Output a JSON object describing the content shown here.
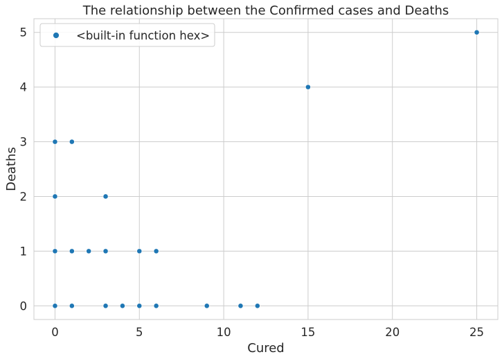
{
  "chart_data": {
    "type": "scatter",
    "title": "The relationship between the Confirmed cases and Deaths",
    "xlabel": "Cured",
    "ylabel": "Deaths",
    "xlim": [
      -1.25,
      26.25
    ],
    "ylim": [
      -0.25,
      5.25
    ],
    "xticks": [
      0,
      5,
      10,
      15,
      20,
      25
    ],
    "yticks": [
      0,
      1,
      2,
      3,
      4,
      5
    ],
    "grid": true,
    "legend_position": "top-left",
    "series": [
      {
        "name": "<built-in function hex>",
        "color": "#1f77b4",
        "points": [
          {
            "x": 0,
            "y": 0
          },
          {
            "x": 1,
            "y": 0
          },
          {
            "x": 3,
            "y": 0
          },
          {
            "x": 4,
            "y": 0
          },
          {
            "x": 5,
            "y": 0
          },
          {
            "x": 6,
            "y": 0
          },
          {
            "x": 9,
            "y": 0
          },
          {
            "x": 11,
            "y": 0
          },
          {
            "x": 12,
            "y": 0
          },
          {
            "x": 0,
            "y": 1
          },
          {
            "x": 1,
            "y": 1
          },
          {
            "x": 2,
            "y": 1
          },
          {
            "x": 3,
            "y": 1
          },
          {
            "x": 5,
            "y": 1
          },
          {
            "x": 6,
            "y": 1
          },
          {
            "x": 0,
            "y": 2
          },
          {
            "x": 3,
            "y": 2
          },
          {
            "x": 0,
            "y": 3
          },
          {
            "x": 1,
            "y": 3
          },
          {
            "x": 15,
            "y": 4
          },
          {
            "x": 25,
            "y": 5
          }
        ]
      }
    ]
  }
}
